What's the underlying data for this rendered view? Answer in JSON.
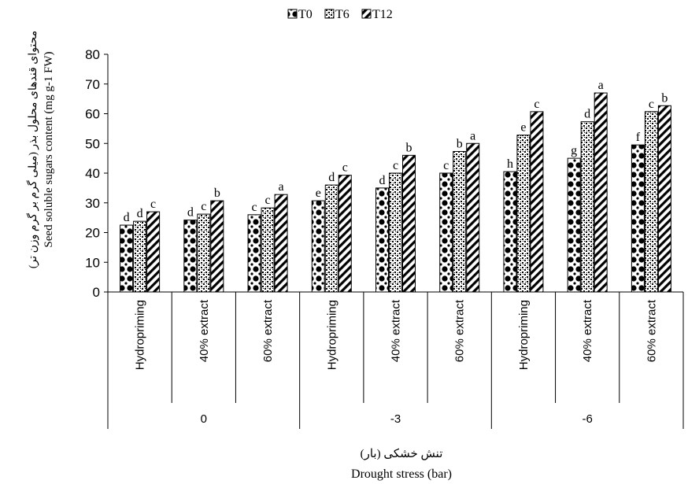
{
  "chart_data": {
    "type": "bar",
    "ylabel": "Seed  soluble sugars content (mg g-1 FW)",
    "ylabel_fa": "محتوای قندهای محلول بذر (میلی گرم بر گرم وزن تر)",
    "xlabel": "Drought stress (bar)",
    "xlabel_fa": "تنش خشکی (بار)",
    "ylim": [
      0,
      80
    ],
    "yticks": [
      "0",
      "10",
      "20",
      "30",
      "40",
      "50",
      "60",
      "70",
      "80"
    ],
    "legend_position": "top",
    "groups": [
      "0",
      "-3",
      "-6"
    ],
    "categories": [
      "Hydropriming",
      "40% extract",
      "60% extract",
      "Hydropriming",
      "40% extract",
      "60% extract",
      "Hydropriming",
      "40% extract",
      "60% extract"
    ],
    "series": [
      {
        "name": "T0",
        "pattern": "dots",
        "values": [
          22.5,
          24.2,
          26.0,
          30.7,
          35.0,
          40.0,
          40.5,
          45.0,
          49.5
        ],
        "labels": [
          "d",
          "d",
          "c",
          "e",
          "d",
          "c",
          "h",
          "g",
          "f"
        ]
      },
      {
        "name": "T6",
        "pattern": "speckle",
        "values": [
          23.8,
          26.2,
          28.3,
          36.0,
          40.0,
          47.3,
          52.8,
          57.3,
          60.7
        ],
        "labels": [
          "d",
          "c",
          "c",
          "d",
          "c",
          "b",
          "e",
          "d",
          "c"
        ]
      },
      {
        "name": "T12",
        "pattern": "stripes",
        "values": [
          27.0,
          30.7,
          32.8,
          39.3,
          46.0,
          50.0,
          60.7,
          67.0,
          62.7
        ],
        "labels": [
          "c",
          "b",
          "a",
          "c",
          "b",
          "a",
          "c",
          "a",
          "b"
        ]
      }
    ]
  }
}
